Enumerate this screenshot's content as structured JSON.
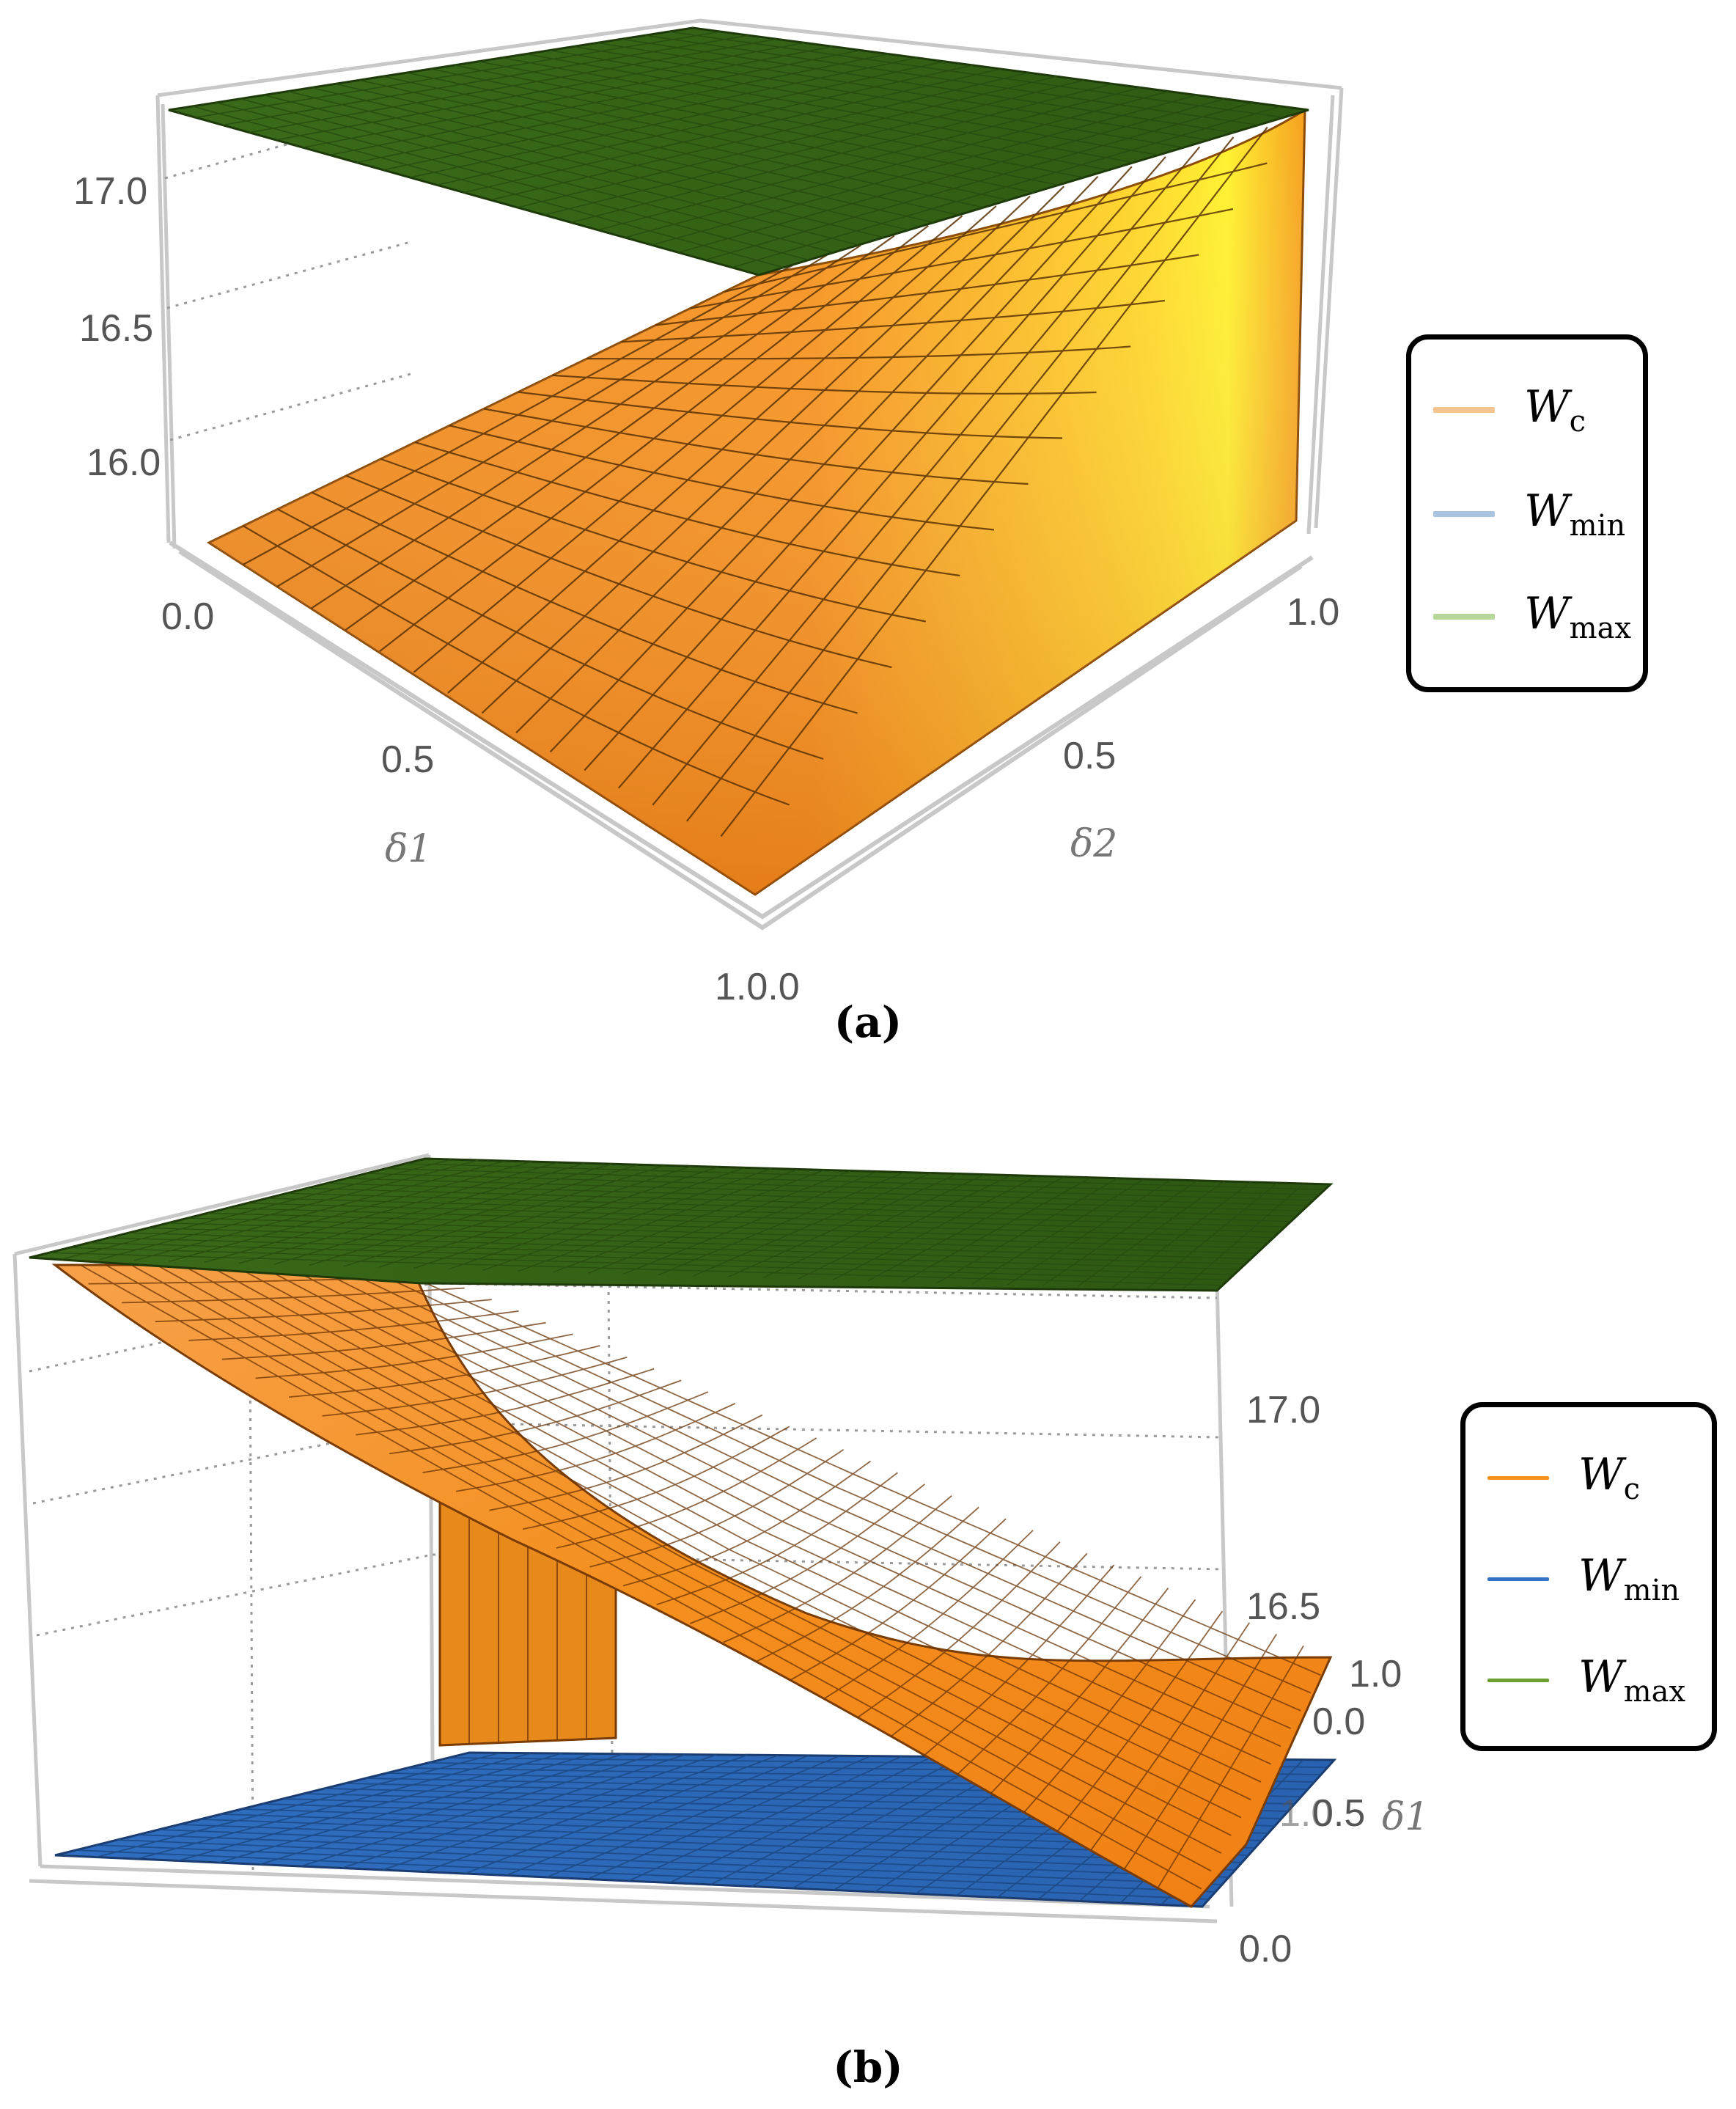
{
  "chart_data": [
    {
      "panel": "(a)",
      "type": "surface3d",
      "title": "",
      "axes": {
        "x": {
          "label": "δ1",
          "ticks": [
            "0.0",
            "0.5",
            "1.0"
          ]
        },
        "y": {
          "label": "δ2",
          "ticks": [
            "0.0",
            "0.5",
            "1.0"
          ]
        },
        "z": {
          "label": "",
          "ticks": [
            "16.0",
            "16.5",
            "17.0"
          ]
        }
      },
      "corner_tick": "1.0.0",
      "series": [
        {
          "name": "W_c",
          "legend_label": "W",
          "legend_sub": "c",
          "color": "#f7921e",
          "legend_color": "#f6c48f",
          "description_values": {
            "at_delta1_0_delta2_0": 15.75,
            "at_delta1_1_delta2_0": 15.75,
            "at_delta1_0_delta2_1": 17.25,
            "at_delta1_1_delta2_1": 15.75
          }
        },
        {
          "name": "W_min",
          "legend_label": "W",
          "legend_sub": "min",
          "color": "#3372c4",
          "legend_color": "#a9c3e3",
          "value": 15.75
        },
        {
          "name": "W_max",
          "legend_label": "W",
          "legend_sub": "max",
          "color": "#3e6b19",
          "legend_color": "#b8d79a",
          "value": 17.25
        }
      ]
    },
    {
      "panel": "(b)",
      "type": "surface3d",
      "title": "",
      "axes": {
        "x": {
          "label": "δ1",
          "ticks": [
            "0.0",
            "0.5",
            "1.0"
          ]
        },
        "z": {
          "label": "",
          "ticks": [
            "16.5",
            "17.0"
          ]
        }
      },
      "overlap_ticks": [
        "1.0",
        "0.5",
        "0.0"
      ],
      "series": [
        {
          "name": "W_c",
          "legend_label": "W",
          "legend_sub": "c",
          "color": "#f7921e",
          "legend_color": "#f7921e"
        },
        {
          "name": "W_min",
          "legend_label": "W",
          "legend_sub": "min",
          "color": "#3372c4",
          "legend_color": "#3372c4"
        },
        {
          "name": "W_max",
          "legend_label": "W",
          "legend_sub": "max",
          "color": "#3e6b19",
          "legend_color": "#6aa02e"
        }
      ]
    }
  ],
  "captions": {
    "a": "(a)",
    "b": "(b)"
  }
}
